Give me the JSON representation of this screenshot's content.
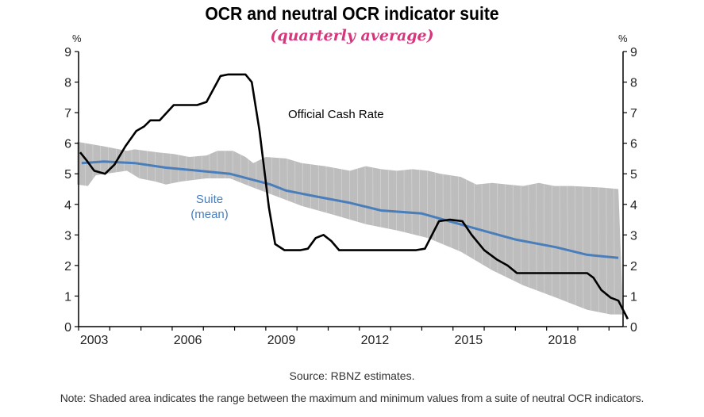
{
  "chart_data": {
    "type": "line",
    "title": "OCR and neutral OCR indicator suite",
    "subtitle": "(quarterly average)",
    "xlabel": "",
    "ylabel_left": "%",
    "ylabel_right": "%",
    "xlim": [
      2003.0,
      2020.45
    ],
    "ylim": [
      0,
      9
    ],
    "yticks": [
      0,
      1,
      2,
      3,
      4,
      5,
      6,
      7,
      8,
      9
    ],
    "xticks": [
      {
        "label": "2003",
        "value": 2003.5
      },
      {
        "label": "2006",
        "value": 2006.5
      },
      {
        "label": "2009",
        "value": 2009.5
      },
      {
        "label": "2012",
        "value": 2012.5
      },
      {
        "label": "2015",
        "value": 2015.5
      },
      {
        "label": "2018",
        "value": 2018.5
      }
    ],
    "grid": false,
    "colors": {
      "ocr": "#000000",
      "suite_mean": "#4a7ebb",
      "band": "#bdbdbd",
      "subtitle": "#d6377c"
    },
    "annotations": [
      {
        "name": "ocr-label",
        "text": "Official Cash Rate"
      },
      {
        "name": "suite-label-line1",
        "text": "Suite"
      },
      {
        "name": "suite-label-line2",
        "text": "(mean)"
      }
    ],
    "series": [
      {
        "name": "Official Cash Rate",
        "x": [
          2003.05,
          2003.25,
          2003.5,
          2003.85,
          2004.15,
          2004.5,
          2004.85,
          2005.1,
          2005.3,
          2005.6,
          2006.05,
          2006.8,
          2007.1,
          2007.55,
          2007.8,
          2008.35,
          2008.55,
          2008.8,
          2009.1,
          2009.3,
          2009.6,
          2010.1,
          2010.35,
          2010.6,
          2010.85,
          2011.1,
          2011.35,
          2013.8,
          2014.1,
          2014.55,
          2014.9,
          2015.3,
          2015.6,
          2016.0,
          2016.4,
          2016.75,
          2017.05,
          2019.3,
          2019.5,
          2019.75,
          2020.05,
          2020.3,
          2020.6
        ],
        "values": [
          5.7,
          5.45,
          5.1,
          5.0,
          5.3,
          5.9,
          6.4,
          6.55,
          6.75,
          6.75,
          7.25,
          7.25,
          7.35,
          8.2,
          8.25,
          8.25,
          8.0,
          6.4,
          3.9,
          2.7,
          2.5,
          2.5,
          2.55,
          2.9,
          3.0,
          2.8,
          2.5,
          2.5,
          2.55,
          3.45,
          3.5,
          3.45,
          3.0,
          2.5,
          2.2,
          2.0,
          1.75,
          1.75,
          1.6,
          1.2,
          0.95,
          0.85,
          0.25
        ]
      },
      {
        "name": "Suite (mean)",
        "x": [
          2003.1,
          2003.8,
          2004.8,
          2005.8,
          2006.85,
          2007.85,
          2008.6,
          2009.15,
          2009.65,
          2010.65,
          2011.7,
          2012.7,
          2014.0,
          2014.7,
          2015.75,
          2017.0,
          2018.3,
          2019.3,
          2020.3
        ],
        "values": [
          5.35,
          5.4,
          5.35,
          5.2,
          5.1,
          5.0,
          4.8,
          4.65,
          4.45,
          4.25,
          4.05,
          3.8,
          3.7,
          3.5,
          3.2,
          2.85,
          2.6,
          2.35,
          2.25
        ]
      },
      {
        "name": "Suite range (max)",
        "x": [
          2002.95,
          2003.8,
          2004.55,
          2004.8,
          2005.55,
          2006.05,
          2006.55,
          2007.1,
          2007.45,
          2007.95,
          2008.35,
          2008.6,
          2009.0,
          2009.65,
          2010.15,
          2010.9,
          2011.7,
          2012.2,
          2012.7,
          2013.2,
          2013.7,
          2014.2,
          2014.6,
          2015.25,
          2015.75,
          2016.25,
          2016.75,
          2017.25,
          2017.75,
          2018.25,
          2018.8,
          2019.8,
          2020.3
        ],
        "values": [
          6.05,
          5.9,
          5.75,
          5.8,
          5.7,
          5.65,
          5.55,
          5.6,
          5.75,
          5.75,
          5.55,
          5.35,
          5.55,
          5.5,
          5.35,
          5.25,
          5.1,
          5.25,
          5.15,
          5.1,
          5.15,
          5.1,
          5.0,
          4.9,
          4.65,
          4.7,
          4.65,
          4.6,
          4.7,
          4.6,
          4.6,
          4.55,
          4.5
        ]
      },
      {
        "name": "Suite range (min)",
        "x": [
          2002.95,
          2003.3,
          2003.55,
          2004.55,
          2004.95,
          2005.45,
          2005.8,
          2006.05,
          2006.3,
          2007.1,
          2007.85,
          2008.6,
          2009.25,
          2010.15,
          2011.2,
          2012.2,
          2013.2,
          2014.2,
          2015.25,
          2016.25,
          2017.25,
          2018.3,
          2019.3,
          2020.05,
          2020.45
        ],
        "values": [
          4.65,
          4.6,
          4.95,
          5.1,
          4.85,
          4.75,
          4.65,
          4.7,
          4.75,
          4.85,
          4.85,
          4.55,
          4.3,
          3.95,
          3.65,
          3.35,
          3.15,
          2.9,
          2.45,
          1.85,
          1.35,
          0.95,
          0.55,
          0.4,
          0.4
        ]
      }
    ],
    "source": "Source: RBNZ estimates.",
    "note": "Note: Shaded area indicates the range between the maximum and minimum values from a suite of neutral OCR indicators."
  }
}
